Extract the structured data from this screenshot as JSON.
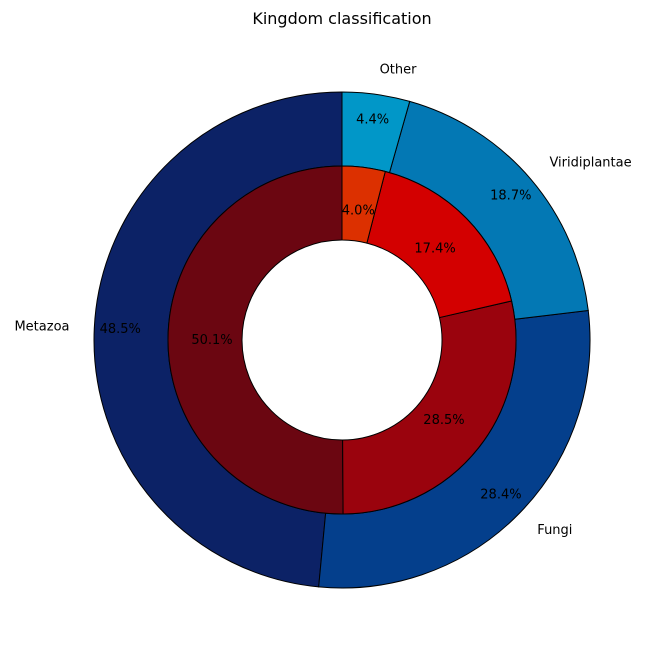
{
  "chart_data": {
    "type": "pie",
    "subtype": "nested-donut",
    "title": "Kingdom classification",
    "categories": [
      "Metazoa",
      "Fungi",
      "Viridiplantae",
      "Other"
    ],
    "series": [
      {
        "ring": "outer",
        "values": [
          48.5,
          28.4,
          18.7,
          4.4
        ],
        "labels": [
          "48.5%",
          "28.4%",
          "18.7%",
          "4.4%"
        ],
        "colors": [
          "#0c2266",
          "#043f8c",
          "#0378b4",
          "#0197c8"
        ]
      },
      {
        "ring": "inner",
        "values": [
          50.1,
          28.5,
          17.4,
          4.0
        ],
        "labels": [
          "50.1%",
          "28.5%",
          "17.4%",
          "4.0%"
        ],
        "colors": [
          "#6b0611",
          "#9a030d",
          "#d30000",
          "#dc3000"
        ]
      }
    ],
    "start_angle": "12 o'clock",
    "direction": "counterclockwise",
    "legend": "none"
  }
}
